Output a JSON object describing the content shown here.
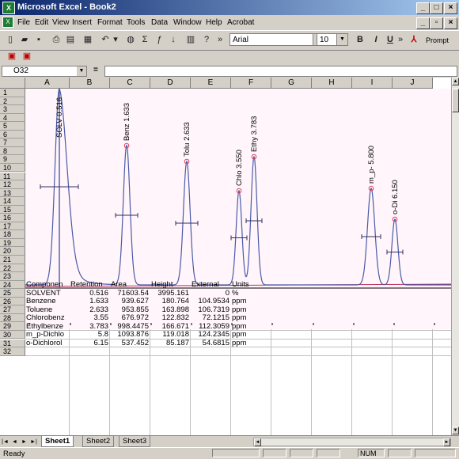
{
  "window": {
    "title": "Microsoft Excel - Book2"
  },
  "menu": {
    "items": [
      "File",
      "Edit",
      "View",
      "Insert",
      "Format",
      "Tools",
      "Data",
      "Window",
      "Help",
      "Acrobat"
    ]
  },
  "toolbar": {
    "font": "Arial",
    "size": "10",
    "bold": "B",
    "italic": "I",
    "underline": "U",
    "prompt": "Prompt"
  },
  "formula_bar": {
    "cell_ref": "O32",
    "equals": "=",
    "value": ""
  },
  "columns": [
    "A",
    "B",
    "C",
    "D",
    "E",
    "F",
    "G",
    "H",
    "I",
    "J"
  ],
  "rows": [
    "1",
    "2",
    "3",
    "4",
    "5",
    "6",
    "7",
    "8",
    "9",
    "10",
    "11",
    "12",
    "13",
    "14",
    "15",
    "16",
    "17",
    "18",
    "19",
    "20",
    "21",
    "22",
    "23",
    "24",
    "25",
    "26",
    "27",
    "28",
    "29",
    "30",
    "31",
    "32"
  ],
  "chart_data": {
    "type": "line",
    "peak_labels": [
      "SOLV 0.516",
      "Benz 1.633",
      "Tolu 2.633",
      "Chlo 3.550",
      "Ethy 3.783",
      "m_p- 5.800",
      "o-Di 6.150"
    ]
  },
  "table": {
    "headers": [
      "Componen",
      "Retention",
      "Area",
      "Height",
      "External",
      "Units"
    ],
    "rows": [
      [
        "SOLVENT",
        "0.516",
        "71603.54",
        "3995.161",
        "0",
        "%"
      ],
      [
        "Benzene",
        "1.633",
        "939.627",
        "180.764",
        "104.9534",
        "ppm"
      ],
      [
        "Toluene",
        "2.633",
        "953.855",
        "163.898",
        "106.7319",
        "ppm"
      ],
      [
        "Chlorobenz",
        "3.55",
        "676.972",
        "122.832",
        "72.1215",
        "ppm"
      ],
      [
        "Ethylbenze",
        "3.783",
        "998.4475",
        "166.671",
        "112.3059",
        "ppm"
      ],
      [
        "m_p-Dichlo",
        "5.8",
        "1093.876",
        "119.018",
        "124.2345",
        "ppm"
      ],
      [
        "o-Dichlorol",
        "6.15",
        "537.452",
        "85.187",
        "54.6815",
        "ppm"
      ]
    ]
  },
  "sheets": [
    "Sheet1",
    "Sheet2",
    "Sheet3"
  ],
  "status": {
    "ready": "Ready",
    "num": "NUM"
  },
  "colors": {
    "accent": "#0a246a",
    "trace": "#4a5aa8",
    "baseline": "#c03060"
  }
}
